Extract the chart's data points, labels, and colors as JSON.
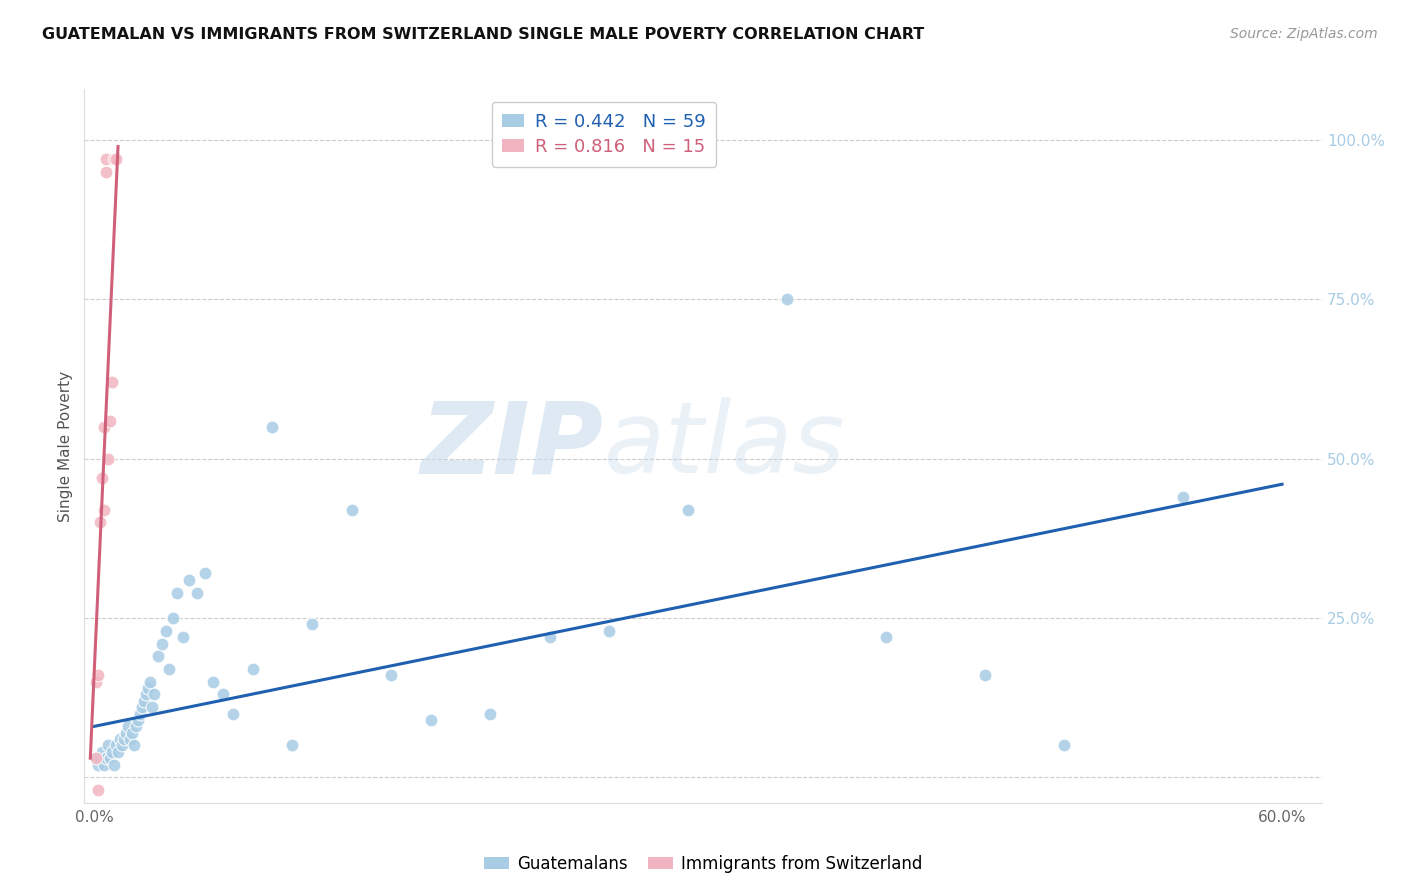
{
  "title": "GUATEMALAN VS IMMIGRANTS FROM SWITZERLAND SINGLE MALE POVERTY CORRELATION CHART",
  "source": "Source: ZipAtlas.com",
  "ylabel": "Single Male Poverty",
  "xlim": [
    -0.005,
    0.62
  ],
  "ylim": [
    -0.04,
    1.08
  ],
  "xticks": [
    0.0,
    0.1,
    0.2,
    0.3,
    0.4,
    0.5,
    0.6
  ],
  "xticklabels": [
    "0.0%",
    "",
    "",
    "",
    "",
    "",
    "60.0%"
  ],
  "yticks_right": [
    0.0,
    0.25,
    0.5,
    0.75,
    1.0
  ],
  "ytick_labels_right": [
    "",
    "25.0%",
    "50.0%",
    "75.0%",
    "100.0%"
  ],
  "blue_R": "0.442",
  "blue_N": "59",
  "pink_R": "0.816",
  "pink_N": "15",
  "blue_legend": "Guatemalans",
  "pink_legend": "Immigrants from Switzerland",
  "blue_color": "#a8cce4",
  "pink_color": "#f2b4c0",
  "blue_line_color": "#2060b0",
  "pink_line_color": "#d0607a",
  "background_color": "#ffffff",
  "grid_color": "#cccccc",
  "blue_scatter_x": [
    0.001,
    0.002,
    0.003,
    0.004,
    0.005,
    0.006,
    0.007,
    0.008,
    0.009,
    0.01,
    0.011,
    0.012,
    0.013,
    0.014,
    0.015,
    0.016,
    0.017,
    0.018,
    0.019,
    0.02,
    0.021,
    0.022,
    0.023,
    0.024,
    0.025,
    0.026,
    0.027,
    0.028,
    0.029,
    0.03,
    0.032,
    0.034,
    0.036,
    0.038,
    0.04,
    0.042,
    0.045,
    0.048,
    0.052,
    0.056,
    0.06,
    0.065,
    0.07,
    0.08,
    0.09,
    0.1,
    0.11,
    0.13,
    0.15,
    0.17,
    0.2,
    0.23,
    0.26,
    0.3,
    0.35,
    0.4,
    0.45,
    0.49,
    0.55
  ],
  "blue_scatter_y": [
    0.03,
    0.02,
    0.03,
    0.04,
    0.02,
    0.03,
    0.05,
    0.03,
    0.04,
    0.02,
    0.05,
    0.04,
    0.06,
    0.05,
    0.06,
    0.07,
    0.08,
    0.06,
    0.07,
    0.05,
    0.08,
    0.09,
    0.1,
    0.11,
    0.12,
    0.13,
    0.14,
    0.15,
    0.11,
    0.13,
    0.19,
    0.21,
    0.23,
    0.17,
    0.25,
    0.29,
    0.22,
    0.31,
    0.29,
    0.32,
    0.15,
    0.13,
    0.1,
    0.17,
    0.55,
    0.05,
    0.24,
    0.42,
    0.16,
    0.09,
    0.1,
    0.22,
    0.23,
    0.42,
    0.75,
    0.22,
    0.16,
    0.05,
    0.44
  ],
  "pink_scatter_x": [
    0.001,
    0.001,
    0.002,
    0.002,
    0.003,
    0.004,
    0.005,
    0.005,
    0.006,
    0.006,
    0.007,
    0.008,
    0.009,
    0.01,
    0.011
  ],
  "pink_scatter_y": [
    0.03,
    0.15,
    0.16,
    -0.02,
    0.4,
    0.47,
    0.55,
    0.42,
    0.95,
    0.97,
    0.5,
    0.56,
    0.62,
    0.97,
    0.97
  ],
  "blue_line_x0": 0.0,
  "blue_line_x1": 0.6,
  "blue_line_y0": 0.08,
  "blue_line_y1": 0.46,
  "pink_line_x0": -0.002,
  "pink_line_x1": 0.012,
  "pink_line_y0": 0.03,
  "pink_line_y1": 0.99
}
